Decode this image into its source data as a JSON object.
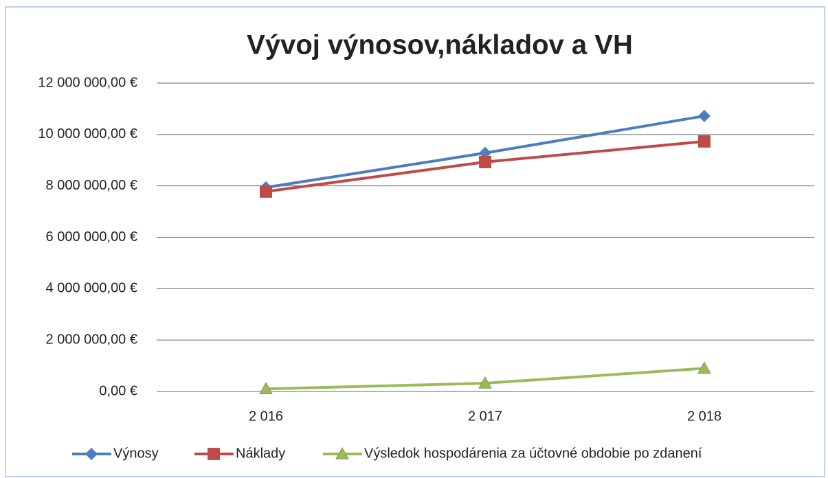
{
  "chart_data": {
    "type": "line",
    "title": "Vývoj výnosov,nákladov a VH",
    "categories": [
      "2 016",
      "2 017",
      "2 018"
    ],
    "series": [
      {
        "name": "Výnosy",
        "color": "#4a7ebf",
        "marker": "diamond",
        "values": [
          7940000,
          9280000,
          10720000
        ]
      },
      {
        "name": "Náklady",
        "color": "#be4b48",
        "marker": "square",
        "values": [
          7780000,
          8930000,
          9730000
        ]
      },
      {
        "name": "Výsledok hospodárenia za účtovné obdobie po zdanení",
        "color": "#9bbb59",
        "marker": "triangle",
        "values": [
          100000,
          320000,
          900000
        ]
      }
    ],
    "ylim": [
      0,
      12000000
    ],
    "yticks": [
      {
        "value": 0,
        "label": "0,00 €"
      },
      {
        "value": 2000000,
        "label": "2 000 000,00 €"
      },
      {
        "value": 4000000,
        "label": "4 000 000,00 €"
      },
      {
        "value": 6000000,
        "label": "6 000 000,00 €"
      },
      {
        "value": 8000000,
        "label": "8 000 000,00 €"
      },
      {
        "value": 10000000,
        "label": "10 000 000,00 €"
      },
      {
        "value": 12000000,
        "label": "12 000 000,00 €"
      }
    ],
    "grid": true,
    "legend": "bottom"
  }
}
